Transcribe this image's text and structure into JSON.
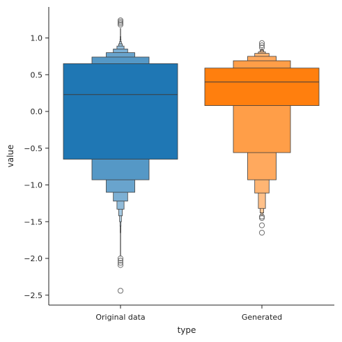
{
  "chart_data": {
    "type": "boxenplot",
    "xlabel": "type",
    "ylabel": "value",
    "ylim": [
      -2.65,
      1.4
    ],
    "y_ticks": [
      {
        "value": 1.0,
        "label": "1.0"
      },
      {
        "value": 0.5,
        "label": "0.5"
      },
      {
        "value": 0.0,
        "label": "0.0"
      },
      {
        "value": -0.5,
        "label": "−0.5"
      },
      {
        "value": -1.0,
        "label": "−1.0"
      },
      {
        "value": -1.5,
        "label": "−1.5"
      },
      {
        "value": -2.0,
        "label": "−2.0"
      },
      {
        "value": -2.5,
        "label": "−2.5"
      }
    ],
    "categories": [
      "Original data",
      "Generated"
    ],
    "colors": {
      "Original data": "#1f77b4",
      "Generated": "#ff7f0e",
      "edge": "#3d3d3d",
      "outlier": "#6e6e6e"
    },
    "series": [
      {
        "category": "Original data",
        "median": 0.23,
        "boxes": [
          {
            "lower": -0.65,
            "upper": 0.65,
            "width": 0.82
          },
          {
            "lower": -0.93,
            "upper": 0.74,
            "width": 0.41
          },
          {
            "lower": -1.1,
            "upper": 0.8,
            "width": 0.205
          },
          {
            "lower": -1.22,
            "upper": 0.85,
            "width": 0.103
          },
          {
            "lower": -1.33,
            "upper": 0.89,
            "width": 0.051
          },
          {
            "lower": -1.42,
            "upper": 0.92,
            "width": 0.026
          },
          {
            "lower": -1.5,
            "upper": 0.95,
            "width": 0.013
          },
          {
            "lower": -1.56,
            "upper": 0.98,
            "width": 0.007
          },
          {
            "lower": -1.65,
            "upper": 1.02,
            "width": 0.004
          },
          {
            "lower": -1.97,
            "upper": 1.13,
            "width": 0.002
          }
        ],
        "outliers": [
          1.24,
          1.22,
          1.2,
          1.18,
          -2.0,
          -2.03,
          -2.06,
          -2.09,
          -2.44
        ]
      },
      {
        "category": "Generated",
        "median": 0.4,
        "boxes": [
          {
            "lower": 0.08,
            "upper": 0.59,
            "width": 0.82
          },
          {
            "lower": -0.56,
            "upper": 0.69,
            "width": 0.41
          },
          {
            "lower": -0.93,
            "upper": 0.75,
            "width": 0.205
          },
          {
            "lower": -1.11,
            "upper": 0.79,
            "width": 0.103
          },
          {
            "lower": -1.32,
            "upper": 0.81,
            "width": 0.051
          },
          {
            "lower": -1.38,
            "upper": 0.83,
            "width": 0.026
          },
          {
            "lower": -1.42,
            "upper": 0.85,
            "width": 0.013
          }
        ],
        "outliers": [
          0.93,
          0.9,
          0.87,
          -1.43,
          -1.45,
          -1.55,
          -1.65
        ]
      }
    ]
  }
}
